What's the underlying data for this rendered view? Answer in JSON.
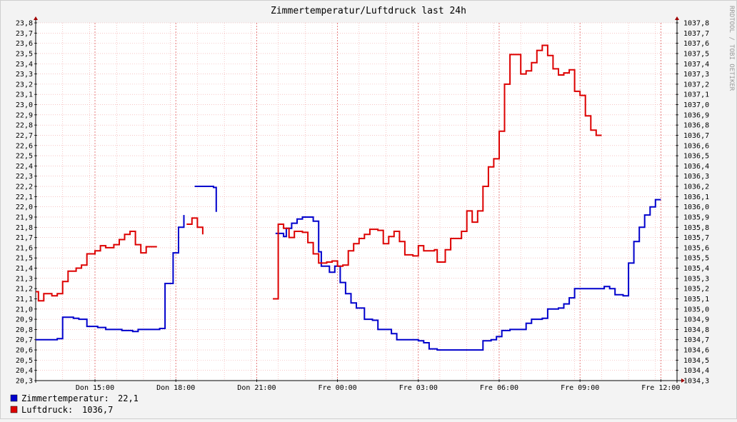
{
  "title": "Zimmertemperatur/Luftdruck last 24h",
  "watermark": "RRDTOOL / TOBI OETIKER",
  "chart_data": {
    "type": "line",
    "title": "Zimmertemperatur/Luftdruck last 24h",
    "grid": true,
    "x_ticks": [
      "Don 15:00",
      "Don 18:00",
      "Don 21:00",
      "Fre 00:00",
      "Fre 03:00",
      "Fre 06:00",
      "Fre 09:00",
      "Fre 12:00"
    ],
    "x_range_hours": [
      0,
      23.8
    ],
    "left_axis": {
      "ylim": [
        20.3,
        23.8
      ],
      "ticks": [
        "20,3",
        "20,4",
        "20,5",
        "20,6",
        "20,7",
        "20,8",
        "20,9",
        "21,0",
        "21,1",
        "21,2",
        "21,3",
        "21,4",
        "21,5",
        "21,6",
        "21,7",
        "21,8",
        "21,9",
        "22,0",
        "22,1",
        "22,2",
        "22,3",
        "22,4",
        "22,5",
        "22,6",
        "22,7",
        "22,8",
        "22,9",
        "23,0",
        "23,1",
        "23,2",
        "23,3",
        "23,4",
        "23,5",
        "23,6",
        "23,7",
        "23,8"
      ]
    },
    "right_axis": {
      "ylim": [
        1034.3,
        1037.8
      ],
      "ticks": [
        "1034,3",
        "1034,4",
        "1034,5",
        "1034,6",
        "1034,7",
        "1034,8",
        "1034,9",
        "1035,0",
        "1035,1",
        "1035,2",
        "1035,3",
        "1035,4",
        "1035,5",
        "1035,6",
        "1035,7",
        "1035,8",
        "1035,9",
        "1036,0",
        "1036,1",
        "1036,2",
        "1036,3",
        "1036,4",
        "1036,5",
        "1036,6",
        "1036,7",
        "1036,8",
        "1036,9",
        "1037,0",
        "1037,1",
        "1037,2",
        "1037,3",
        "1037,4",
        "1037,5",
        "1037,6",
        "1037,7",
        "1037,8"
      ]
    },
    "series": [
      {
        "name": "Zimmertemperatur",
        "color": "#0000cc",
        "axis": "left",
        "current": "22,1",
        "points": [
          [
            0.0,
            20.7
          ],
          [
            0.8,
            20.71
          ],
          [
            1.0,
            20.92
          ],
          [
            1.4,
            20.91
          ],
          [
            1.6,
            20.9
          ],
          [
            1.9,
            20.83
          ],
          [
            2.3,
            20.82
          ],
          [
            2.6,
            20.8
          ],
          [
            3.2,
            20.79
          ],
          [
            3.6,
            20.78
          ],
          [
            3.8,
            20.8
          ],
          [
            4.4,
            20.8
          ],
          [
            4.6,
            20.81
          ],
          [
            4.8,
            21.25
          ],
          [
            5.1,
            21.55
          ],
          [
            5.3,
            21.8
          ],
          [
            5.5,
            21.92
          ],
          [
            5.7,
            null
          ],
          [
            5.9,
            22.2
          ],
          [
            6.3,
            22.2
          ],
          [
            6.6,
            22.19
          ],
          [
            6.7,
            21.95
          ],
          [
            6.9,
            null
          ],
          [
            8.9,
            21.74
          ],
          [
            9.2,
            21.71
          ],
          [
            9.3,
            21.79
          ],
          [
            9.5,
            21.84
          ],
          [
            9.7,
            21.88
          ],
          [
            9.9,
            21.9
          ],
          [
            10.3,
            21.86
          ],
          [
            10.5,
            21.56
          ],
          [
            10.6,
            21.42
          ],
          [
            10.9,
            21.36
          ],
          [
            11.1,
            21.42
          ],
          [
            11.3,
            21.26
          ],
          [
            11.5,
            21.15
          ],
          [
            11.7,
            21.06
          ],
          [
            11.9,
            21.01
          ],
          [
            12.2,
            20.9
          ],
          [
            12.5,
            20.89
          ],
          [
            12.7,
            20.8
          ],
          [
            13.2,
            20.76
          ],
          [
            13.4,
            20.7
          ],
          [
            13.9,
            20.7
          ],
          [
            14.2,
            20.69
          ],
          [
            14.4,
            20.67
          ],
          [
            14.6,
            20.61
          ],
          [
            14.9,
            20.6
          ],
          [
            16.2,
            20.6
          ],
          [
            16.6,
            20.69
          ],
          [
            16.9,
            20.7
          ],
          [
            17.1,
            20.73
          ],
          [
            17.3,
            20.79
          ],
          [
            17.6,
            20.8
          ],
          [
            18.0,
            20.8
          ],
          [
            18.2,
            20.86
          ],
          [
            18.4,
            20.9
          ],
          [
            18.8,
            20.91
          ],
          [
            19.0,
            21.0
          ],
          [
            19.4,
            21.01
          ],
          [
            19.6,
            21.05
          ],
          [
            19.8,
            21.11
          ],
          [
            20.0,
            21.2
          ],
          [
            20.9,
            21.2
          ],
          [
            21.1,
            21.22
          ],
          [
            21.3,
            21.2
          ],
          [
            21.5,
            21.14
          ],
          [
            21.8,
            21.13
          ],
          [
            22.0,
            21.45
          ],
          [
            22.2,
            21.66
          ],
          [
            22.4,
            21.8
          ],
          [
            22.6,
            21.92
          ],
          [
            22.8,
            22.0
          ],
          [
            23.0,
            22.07
          ],
          [
            23.2,
            22.07
          ]
        ]
      },
      {
        "name": "Luftdruck",
        "color": "#dd0000",
        "axis": "right",
        "current": "1036,7",
        "points": [
          [
            0.0,
            1035.17
          ],
          [
            0.1,
            1035.08
          ],
          [
            0.3,
            1035.15
          ],
          [
            0.6,
            1035.13
          ],
          [
            0.8,
            1035.15
          ],
          [
            1.0,
            1035.27
          ],
          [
            1.2,
            1035.37
          ],
          [
            1.5,
            1035.4
          ],
          [
            1.7,
            1035.43
          ],
          [
            1.9,
            1035.54
          ],
          [
            2.2,
            1035.57
          ],
          [
            2.4,
            1035.62
          ],
          [
            2.6,
            1035.6
          ],
          [
            2.9,
            1035.63
          ],
          [
            3.1,
            1035.68
          ],
          [
            3.3,
            1035.73
          ],
          [
            3.5,
            1035.76
          ],
          [
            3.7,
            1035.63
          ],
          [
            3.9,
            1035.55
          ],
          [
            4.1,
            1035.61
          ],
          [
            4.5,
            1035.61
          ],
          [
            4.6,
            null
          ],
          [
            5.6,
            1035.83
          ],
          [
            5.8,
            1035.89
          ],
          [
            6.0,
            1035.8
          ],
          [
            6.2,
            1035.73
          ],
          [
            6.4,
            null
          ],
          [
            8.8,
            1035.1
          ],
          [
            9.0,
            1035.83
          ],
          [
            9.2,
            1035.79
          ],
          [
            9.4,
            1035.7
          ],
          [
            9.6,
            1035.76
          ],
          [
            9.9,
            1035.75
          ],
          [
            10.1,
            1035.65
          ],
          [
            10.3,
            1035.54
          ],
          [
            10.5,
            1035.45
          ],
          [
            10.8,
            1035.46
          ],
          [
            11.0,
            1035.47
          ],
          [
            11.2,
            1035.42
          ],
          [
            11.4,
            1035.43
          ],
          [
            11.6,
            1035.57
          ],
          [
            11.8,
            1035.64
          ],
          [
            12.0,
            1035.69
          ],
          [
            12.2,
            1035.73
          ],
          [
            12.4,
            1035.78
          ],
          [
            12.7,
            1035.77
          ],
          [
            12.9,
            1035.64
          ],
          [
            13.1,
            1035.71
          ],
          [
            13.3,
            1035.76
          ],
          [
            13.5,
            1035.66
          ],
          [
            13.7,
            1035.53
          ],
          [
            14.0,
            1035.52
          ],
          [
            14.2,
            1035.62
          ],
          [
            14.4,
            1035.57
          ],
          [
            14.8,
            1035.58
          ],
          [
            14.9,
            1035.46
          ],
          [
            15.2,
            1035.58
          ],
          [
            15.4,
            1035.69
          ],
          [
            15.8,
            1035.76
          ],
          [
            16.0,
            1035.96
          ],
          [
            16.2,
            1035.85
          ],
          [
            16.4,
            1035.96
          ],
          [
            16.6,
            1036.2
          ],
          [
            16.8,
            1036.39
          ],
          [
            17.0,
            1036.47
          ],
          [
            17.2,
            1036.74
          ],
          [
            17.4,
            1037.2
          ],
          [
            17.6,
            1037.49
          ],
          [
            18.0,
            1037.3
          ],
          [
            18.2,
            1037.33
          ],
          [
            18.4,
            1037.41
          ],
          [
            18.6,
            1037.53
          ],
          [
            18.8,
            1037.58
          ],
          [
            19.0,
            1037.48
          ],
          [
            19.2,
            1037.35
          ],
          [
            19.4,
            1037.29
          ],
          [
            19.6,
            1037.31
          ],
          [
            19.8,
            1037.34
          ],
          [
            20.0,
            1037.13
          ],
          [
            20.2,
            1037.09
          ],
          [
            20.4,
            1036.89
          ],
          [
            20.6,
            1036.75
          ],
          [
            20.8,
            1036.7
          ],
          [
            21.0,
            1036.7
          ]
        ]
      }
    ]
  },
  "legend": [
    {
      "label": "Zimmertemperatur:",
      "value": "22,1",
      "color": "#0000cc"
    },
    {
      "label": "Luftdruck:",
      "value": "1036,7",
      "color": "#dd0000"
    }
  ]
}
